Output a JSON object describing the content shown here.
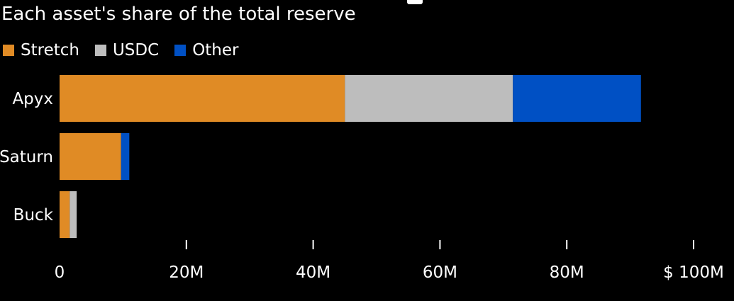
{
  "chart_data": {
    "type": "bar",
    "orientation": "horizontal",
    "stacked": true,
    "title": "",
    "subtitle": "Each asset's share of the total reserve",
    "categories": [
      "Apyx",
      "Saturn",
      "Buck"
    ],
    "series": [
      {
        "name": "Stretch",
        "color": "#E08B25",
        "values": [
          45,
          9.7,
          1.6
        ]
      },
      {
        "name": "USDC",
        "color": "#BDBDBD",
        "values": [
          26.5,
          0,
          1.1
        ]
      },
      {
        "name": "Other",
        "color": "#0050C4",
        "values": [
          20.2,
          1.3,
          0
        ]
      }
    ],
    "xlim": [
      0,
      100
    ],
    "x_ticks": [
      {
        "value": 0,
        "label": "0"
      },
      {
        "value": 20,
        "label": "20M"
      },
      {
        "value": 40,
        "label": "40M"
      },
      {
        "value": 60,
        "label": "60M"
      },
      {
        "value": 80,
        "label": "80M"
      },
      {
        "value": 100,
        "label": "$ 100M"
      }
    ],
    "xlabel": "",
    "ylabel": "",
    "grid": false,
    "legend_position": "top-left"
  }
}
